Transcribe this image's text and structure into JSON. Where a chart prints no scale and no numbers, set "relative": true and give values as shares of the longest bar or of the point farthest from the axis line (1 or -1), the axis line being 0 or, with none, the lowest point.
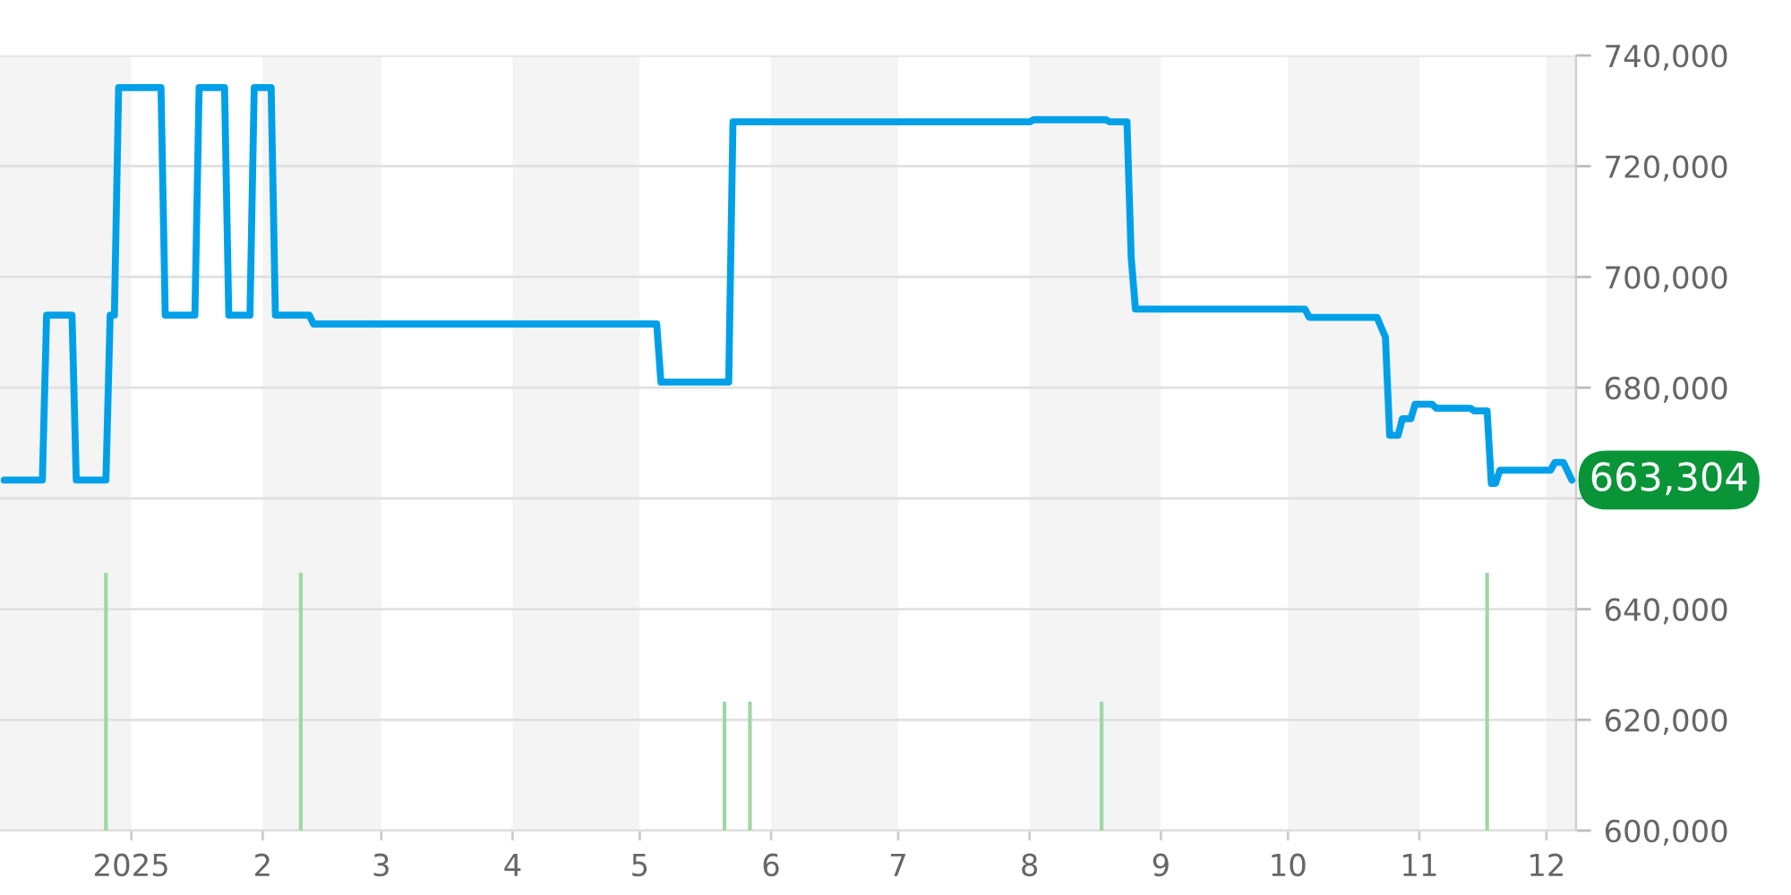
{
  "chart_data": [
    {
      "type": "line",
      "x": [
        "2024-12-02",
        "2024-12-11",
        "2024-12-12",
        "2024-12-18",
        "2024-12-19",
        "2024-12-26",
        "2024-12-27",
        "2024-12-28",
        "2024-12-29",
        "2025-01-08",
        "2025-01-09",
        "2025-01-16",
        "2025-01-17",
        "2025-01-23",
        "2025-01-24",
        "2025-01-29",
        "2025-01-30",
        "2025-02-03",
        "2025-02-04",
        "2025-02-12",
        "2025-02-13",
        "2025-05-05",
        "2025-05-06",
        "2025-05-22",
        "2025-05-23",
        "2025-08-01",
        "2025-08-02",
        "2025-08-19",
        "2025-08-20",
        "2025-08-24",
        "2025-08-25",
        "2025-08-26",
        "2025-10-05",
        "2025-10-06",
        "2025-10-22",
        "2025-10-24",
        "2025-10-25",
        "2025-10-27",
        "2025-10-28",
        "2025-10-30",
        "2025-10-31",
        "2025-11-04",
        "2025-11-05",
        "2025-11-13",
        "2025-11-14",
        "2025-11-17",
        "2025-11-18",
        "2025-11-19",
        "2025-11-20",
        "2025-12-02",
        "2025-12-03",
        "2025-12-05",
        "2025-12-07"
      ],
      "series": [
        {
          "color": "#00a0e9",
          "values": [
            663300,
            663300,
            693100,
            693100,
            663300,
            663300,
            693100,
            693100,
            734200,
            734200,
            693100,
            693100,
            734200,
            734200,
            693100,
            693100,
            734200,
            734200,
            693100,
            693100,
            691500,
            691500,
            681000,
            681000,
            728000,
            728000,
            728400,
            728400,
            728000,
            728000,
            703400,
            694200,
            694200,
            692700,
            692700,
            689100,
            671400,
            671400,
            674400,
            674400,
            677000,
            677000,
            676300,
            676300,
            675800,
            675800,
            662700,
            662700,
            665100,
            665100,
            666500,
            666500,
            663304
          ]
        }
      ],
      "xlim": [
        "2024-12-01",
        "2025-12-08"
      ],
      "xticks": [
        {
          "value": "2025-01-01",
          "label": "2025"
        },
        {
          "value": "2025-02-01",
          "label": "2"
        },
        {
          "value": "2025-03-01",
          "label": "3"
        },
        {
          "value": "2025-04-01",
          "label": "4"
        },
        {
          "value": "2025-05-01",
          "label": "5"
        },
        {
          "value": "2025-06-01",
          "label": "6"
        },
        {
          "value": "2025-07-01",
          "label": "7"
        },
        {
          "value": "2025-08-01",
          "label": "8"
        },
        {
          "value": "2025-09-01",
          "label": "9"
        },
        {
          "value": "2025-10-01",
          "label": "10"
        },
        {
          "value": "2025-11-01",
          "label": "11"
        },
        {
          "value": "2025-12-01",
          "label": "12"
        }
      ],
      "ylim": [
        600000,
        740000
      ],
      "yticks": [
        {
          "value": 600000,
          "label": "600,000"
        },
        {
          "value": 620000,
          "label": "620,000"
        },
        {
          "value": 640000,
          "label": "640,000"
        },
        {
          "value": 660000,
          "label": null
        },
        {
          "value": 680000,
          "label": "680,000"
        },
        {
          "value": 700000,
          "label": "700,000"
        },
        {
          "value": 720000,
          "label": "720,000"
        },
        {
          "value": 740000,
          "label": "740,000"
        }
      ],
      "grid": "y",
      "bands": [
        {
          "axis": "x",
          "from": "2024-12-01",
          "to": "2025-01-01",
          "color": "#f4f4f4"
        },
        {
          "axis": "x",
          "from": "2025-02-01",
          "to": "2025-03-01",
          "color": "#f4f4f4"
        },
        {
          "axis": "x",
          "from": "2025-04-01",
          "to": "2025-05-01",
          "color": "#f4f4f4"
        },
        {
          "axis": "x",
          "from": "2025-06-01",
          "to": "2025-07-01",
          "color": "#f4f4f4"
        },
        {
          "axis": "x",
          "from": "2025-08-01",
          "to": "2025-09-01",
          "color": "#f4f4f4"
        },
        {
          "axis": "x",
          "from": "2025-10-01",
          "to": "2025-11-01",
          "color": "#f4f4f4"
        },
        {
          "axis": "x",
          "from": "2025-12-01",
          "to": "2025-12-08",
          "color": "#f4f4f4"
        }
      ],
      "annotations": [
        {
          "text": "663,304",
          "x": "2025-12-07",
          "y": 663304
        }
      ]
    },
    {
      "type": "bar",
      "relative": true,
      "x": [
        "2024-12-26",
        "2025-02-10",
        "2025-05-21",
        "2025-05-27",
        "2025-08-18",
        "2025-11-17"
      ],
      "values": [
        1,
        1,
        0.5,
        0.5,
        0.5,
        1
      ],
      "color": "#9fd8a5",
      "xlim": [
        "2024-12-01",
        "2025-12-08"
      ],
      "tick_labels": false
    }
  ]
}
